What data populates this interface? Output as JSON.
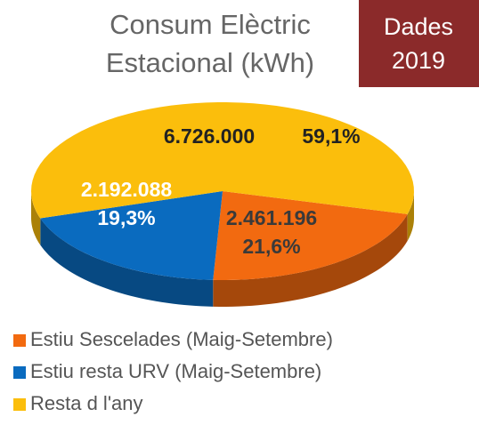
{
  "chart_data": {
    "type": "pie",
    "title": [
      "Consum Elèctric",
      "Estacional (kWh)"
    ],
    "badge": [
      "Dades",
      "2019"
    ],
    "categories": [
      "Estiu Sescelades (Maig-Setembre)",
      "Estiu resta URV (Maig-Setembre)",
      "Resta d l'any"
    ],
    "values": [
      2461196,
      2192088,
      6726000
    ],
    "value_labels": [
      "2.461.196",
      "2.192.088",
      "6.726.000"
    ],
    "percents": [
      21.6,
      19.3,
      59.1
    ],
    "percent_labels": [
      "21,6%",
      "19,3%",
      "59,1%"
    ],
    "colors": [
      "#f26a10",
      "#0a6bbf",
      "#fbbe0c"
    ],
    "legend": "bottom"
  }
}
